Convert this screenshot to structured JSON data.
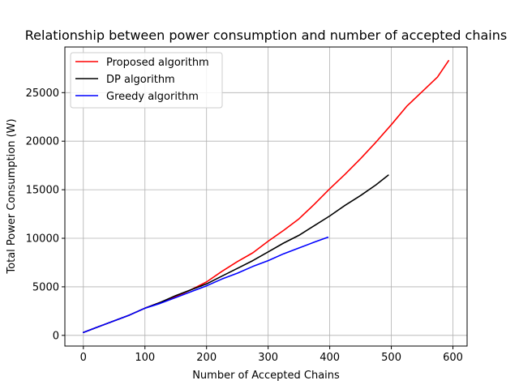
{
  "chart_data": {
    "type": "line",
    "title": "Relationship between power consumption and number of accepted chains",
    "xlabel": "Number of Accepted Chains",
    "ylabel": "Total Power Consumption (W)",
    "xlim": [
      -30,
      623
    ],
    "ylim": [
      -1100,
      29700
    ],
    "xticks": [
      0,
      100,
      200,
      300,
      400,
      500,
      600
    ],
    "yticks": [
      0,
      5000,
      10000,
      15000,
      20000,
      25000
    ],
    "grid": true,
    "legend_position": "upper-left",
    "series": [
      {
        "name": "Proposed algorithm",
        "color": "#ff0000",
        "x": [
          0,
          25,
          50,
          75,
          100,
          125,
          150,
          175,
          200,
          225,
          250,
          275,
          300,
          325,
          350,
          375,
          400,
          425,
          450,
          475,
          500,
          525,
          550,
          575,
          593
        ],
        "y": [
          300,
          900,
          1500,
          2100,
          2800,
          3400,
          4000,
          4700,
          5500,
          6600,
          7600,
          8500,
          9700,
          10800,
          12000,
          13500,
          15100,
          16600,
          18200,
          19900,
          21700,
          23600,
          25100,
          26600,
          28300
        ]
      },
      {
        "name": "DP algorithm",
        "color": "#000000",
        "x": [
          0,
          25,
          50,
          75,
          100,
          125,
          150,
          175,
          200,
          225,
          250,
          275,
          300,
          325,
          350,
          375,
          400,
          425,
          450,
          475,
          495
        ],
        "y": [
          300,
          900,
          1500,
          2100,
          2800,
          3400,
          4100,
          4700,
          5300,
          6100,
          6900,
          7700,
          8600,
          9500,
          10300,
          11300,
          12300,
          13400,
          14400,
          15500,
          16500
        ]
      },
      {
        "name": "Greedy algorithm",
        "color": "#0000ff",
        "x": [
          0,
          25,
          50,
          75,
          100,
          125,
          150,
          175,
          200,
          225,
          250,
          275,
          300,
          325,
          350,
          375,
          397
        ],
        "y": [
          300,
          900,
          1500,
          2100,
          2800,
          3300,
          3900,
          4500,
          5100,
          5800,
          6400,
          7100,
          7700,
          8400,
          9000,
          9600,
          10100
        ]
      }
    ]
  }
}
